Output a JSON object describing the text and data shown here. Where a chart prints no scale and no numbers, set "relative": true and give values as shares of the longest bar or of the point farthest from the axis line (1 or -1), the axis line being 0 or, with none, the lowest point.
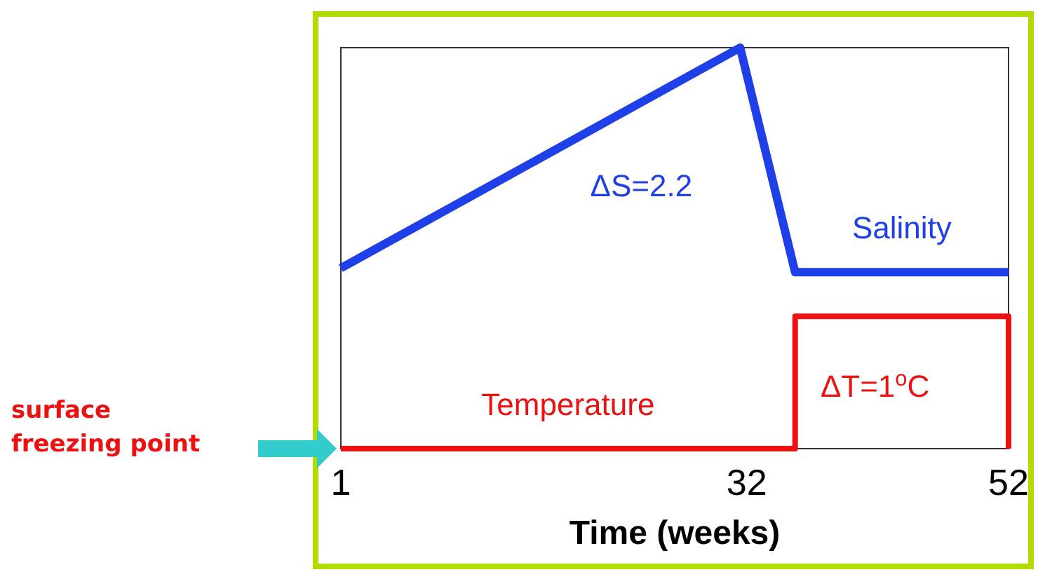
{
  "chart_data": {
    "type": "line",
    "relative": true,
    "xlabel": "Time (weeks)",
    "xlim": [
      1,
      52
    ],
    "xticks": [
      1,
      32,
      52
    ],
    "tick_labels": "x",
    "line_style": "solid",
    "series": [
      {
        "name": "Salinity",
        "color": "#1f3fe8",
        "x": [
          1,
          31.5,
          35.7,
          52
        ],
        "values": [
          0.45,
          1,
          0.44,
          0.44
        ]
      },
      {
        "name": "Temperature",
        "color": "#ee1111",
        "x": [
          1,
          35.7,
          35.7,
          52,
          52
        ],
        "values": [
          0,
          0,
          0.33,
          0.33,
          0
        ]
      }
    ],
    "annotations": [
      "ΔS=2.2",
      "ΔT=1$^{o}$C",
      "surface freezing point"
    ]
  }
}
